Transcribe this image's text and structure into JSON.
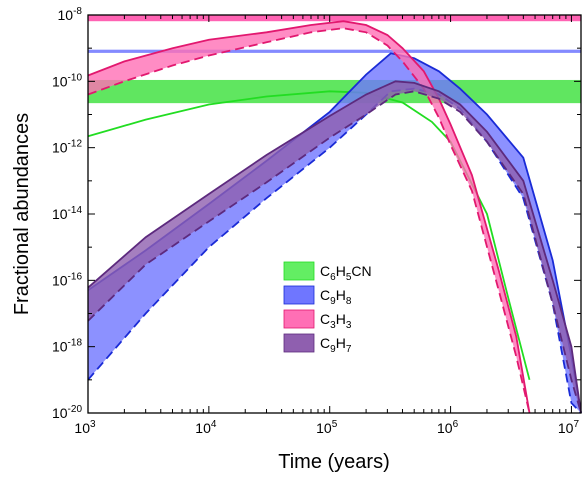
{
  "chart_data": {
    "type": "area",
    "xlabel": "Time (years)",
    "ylabel": "Fractional abundances",
    "xscale": "log",
    "yscale": "log",
    "xlim": [
      1000,
      12000000
    ],
    "ylim": [
      1e-20,
      1e-08
    ],
    "x_ticks": [
      {
        "value": 1000,
        "base": "10",
        "exp": "3"
      },
      {
        "value": 10000,
        "base": "10",
        "exp": "4"
      },
      {
        "value": 100000,
        "base": "10",
        "exp": "5"
      },
      {
        "value": 1000000,
        "base": "10",
        "exp": "6"
      },
      {
        "value": 10000000,
        "base": "10",
        "exp": "7"
      }
    ],
    "y_ticks": [
      {
        "value": 1e-20,
        "base": "10",
        "exp": "-20"
      },
      {
        "value": 1e-18,
        "base": "10",
        "exp": "-18"
      },
      {
        "value": 1e-16,
        "base": "10",
        "exp": "-16"
      },
      {
        "value": 1e-14,
        "base": "10",
        "exp": "-14"
      },
      {
        "value": 1e-12,
        "base": "10",
        "exp": "-12"
      },
      {
        "value": 1e-10,
        "base": "10",
        "exp": "-10"
      },
      {
        "value": 1e-08,
        "base": "10",
        "exp": "-8"
      }
    ],
    "legend_position": "lower-center",
    "observed_bands": [
      {
        "species": "C3H3",
        "color": "#ff2f9a",
        "ymin": 6.5e-09,
        "ymax": 1e-08
      },
      {
        "species": "C9H8",
        "color": "#5b63ff",
        "ymin": 7.2e-10,
        "ymax": 9e-10
      },
      {
        "species": "C6H5CN",
        "color": "#2bde2b",
        "ymin": 2.2e-11,
        "ymax": 1.1e-10
      }
    ],
    "series": [
      {
        "name": "C6H5CN",
        "legend": {
          "parts": [
            [
              "C",
              ""
            ],
            [
              "6",
              "sub"
            ],
            [
              "H",
              ""
            ],
            [
              "5",
              "sub"
            ],
            [
              "CN",
              ""
            ]
          ]
        },
        "color": "#22dd22",
        "fill": "#63ee63",
        "kind": "line",
        "x": [
          1000,
          3000,
          10000,
          30000,
          100000,
          200000,
          400000,
          700000,
          1000000,
          2000000,
          3000000,
          4500000
        ],
        "y": [
          2.2e-12,
          7e-12,
          2e-11,
          3.5e-11,
          5e-11,
          4.5e-11,
          2.3e-11,
          6e-12,
          1.5e-12,
          1e-14,
          3e-17,
          1e-19
        ]
      },
      {
        "name": "C9H8",
        "legend": {
          "parts": [
            [
              "C",
              ""
            ],
            [
              "9",
              "sub"
            ],
            [
              "H",
              ""
            ],
            [
              "8",
              "sub"
            ]
          ]
        },
        "color": "#1a2bd6",
        "fill": "#6f76ff",
        "kind": "band",
        "x": [
          1000,
          3000,
          10000,
          30000,
          100000,
          200000,
          320000,
          500000,
          800000,
          1200000,
          2000000,
          4000000,
          7000000,
          10000000,
          12000000
        ],
        "y_upper": [
          5e-17,
          8e-16,
          2e-14,
          4e-13,
          1.2e-11,
          1.6e-10,
          7e-10,
          5e-10,
          2e-10,
          6e-11,
          1e-11,
          5e-13,
          4e-16,
          5e-19,
          1e-20
        ],
        "y_lower": [
          1e-19,
          1e-17,
          1e-15,
          3e-14,
          1e-12,
          1e-11,
          5e-11,
          6e-11,
          4e-11,
          1.5e-11,
          1.5e-12,
          3e-14,
          2e-17,
          2e-20,
          1e-20
        ]
      },
      {
        "name": "C3H3",
        "legend": {
          "parts": [
            [
              "C",
              ""
            ],
            [
              "3",
              "sub"
            ],
            [
              "H",
              ""
            ],
            [
              "3",
              "sub"
            ]
          ]
        },
        "color": "#e2186f",
        "fill": "#ff6fb5",
        "kind": "band",
        "x": [
          1000,
          2000,
          5000,
          10000,
          30000,
          70000,
          130000,
          200000,
          300000,
          400000,
          600000,
          800000,
          1000000,
          1500000,
          2500000,
          3500000,
          4500000
        ],
        "y_upper": [
          1.5e-10,
          4e-10,
          1e-09,
          1.8e-09,
          3e-09,
          5e-09,
          6.5e-09,
          5e-09,
          2.5e-09,
          1e-09,
          2e-10,
          3e-11,
          5e-12,
          1.5e-13,
          2e-16,
          2e-18,
          1e-20
        ],
        "y_lower": [
          4e-11,
          1e-10,
          3e-10,
          6e-10,
          1.5e-09,
          3e-09,
          4e-09,
          3e-09,
          1.2e-09,
          4e-10,
          6e-11,
          8e-12,
          1.2e-12,
          5e-14,
          5e-17,
          5e-19,
          1e-20
        ]
      },
      {
        "name": "C9H7",
        "legend": {
          "parts": [
            [
              "C",
              ""
            ],
            [
              "9",
              "sub"
            ],
            [
              "H",
              ""
            ],
            [
              "7",
              "sub"
            ]
          ]
        },
        "color": "#5d2a7e",
        "fill": "#8f5faf",
        "kind": "band",
        "x": [
          1000,
          3000,
          10000,
          30000,
          100000,
          200000,
          350000,
          500000,
          800000,
          1200000,
          2000000,
          4000000,
          7000000,
          10000000,
          12000000
        ],
        "y_upper": [
          6e-17,
          2e-15,
          4e-14,
          6e-13,
          9e-12,
          4e-11,
          1e-10,
          9e-11,
          5e-11,
          2e-11,
          3e-12,
          1e-13,
          1e-16,
          1e-18,
          1e-20
        ],
        "y_lower": [
          6e-18,
          3e-16,
          6e-15,
          9e-14,
          2e-12,
          1e-11,
          4e-11,
          5e-11,
          3e-11,
          1.2e-11,
          1.5e-12,
          4e-14,
          2e-17,
          1e-19,
          1e-20
        ]
      }
    ]
  }
}
